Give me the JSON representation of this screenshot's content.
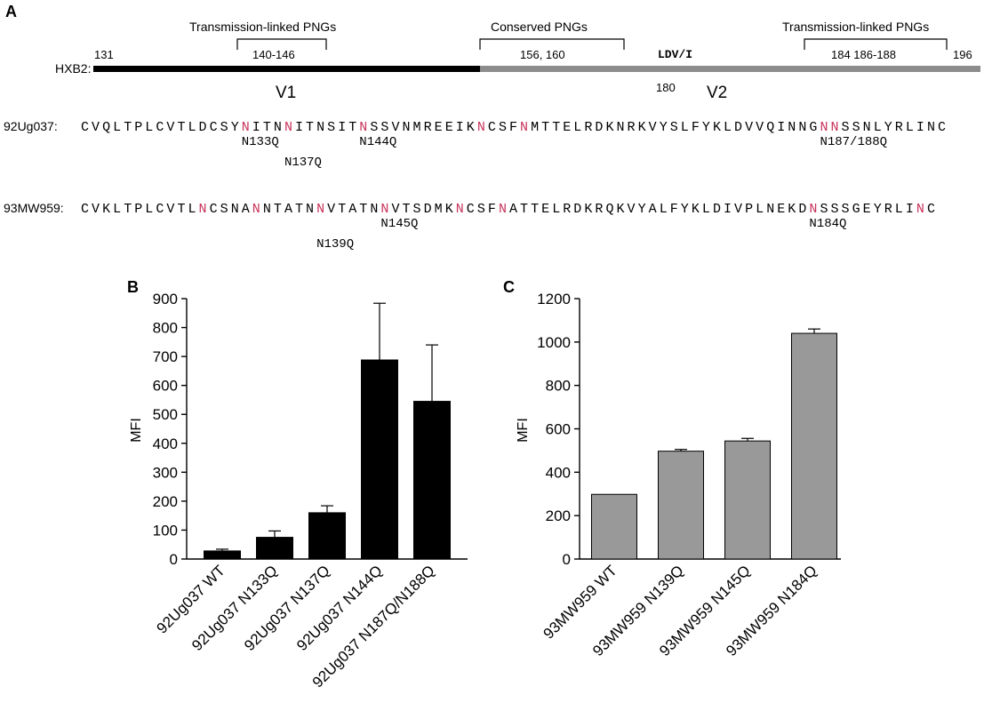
{
  "panel_a": {
    "letter": "A",
    "map_label": "HXB2:",
    "positions": {
      "start": "131",
      "end": "196",
      "mid": "180"
    },
    "regions": {
      "v1": "V1",
      "v2": "V2"
    },
    "ldv_label": "LDV/I",
    "brackets": [
      {
        "title": "Transmission-linked PNGs",
        "range": "140-146"
      },
      {
        "title": "Conserved PNGs",
        "range": "156, 160"
      },
      {
        "title": "Transmission-linked PNGs",
        "range": "184 186-188"
      }
    ],
    "colors": {
      "v1_bar": "#000000",
      "v2_bar": "#8c8c8c",
      "glycan_n": "#c8325a"
    },
    "sequences": [
      {
        "label": "92Ug037:",
        "sequence": "CVQLTPLCVTLDCSYNITNNITNSITNSSVNMREEIKNCSFNMTTELRDKNRKVYSLFYKLDVVQINNGNNSSNLYRLINC",
        "highlight_indices": [
          15,
          19,
          26,
          37,
          41,
          69,
          70
        ],
        "mutations": [
          {
            "label": "N133Q",
            "col": 15,
            "row": 0
          },
          {
            "label": "N137Q",
            "col": 19,
            "row": 1
          },
          {
            "label": "N144Q",
            "col": 26,
            "row": 0
          },
          {
            "label": "N187/188Q",
            "col": 69,
            "row": 0
          }
        ]
      },
      {
        "label": "93MW959:",
        "sequence": "CVKLTPLCVTLNCSNANNTATNNVTATNNVTSDMKNCSFNATTELRDKRQKVYALFYKLDIVPLNEKDNSSSGEYRLINC",
        "highlight_indices": [
          11,
          16,
          22,
          28,
          35,
          39,
          68,
          78
        ],
        "mutations": [
          {
            "label": "N145Q",
            "col": 28,
            "row": 0
          },
          {
            "label": "N139Q",
            "col": 22,
            "row": 1
          },
          {
            "label": "N184Q",
            "col": 68,
            "row": 0
          }
        ]
      }
    ]
  },
  "chart_data": [
    {
      "panel": "B",
      "type": "bar",
      "ylabel": "MFI",
      "ylim": [
        0,
        900
      ],
      "yticks": [
        "0",
        "100",
        "200",
        "300",
        "400",
        "500",
        "600",
        "700",
        "800",
        "900"
      ],
      "bar_color": "#000000",
      "categories": [
        "92Ug037 WT",
        "92Ug037 N133Q",
        "92Ug037 N137Q",
        "92Ug037 N144Q",
        "92Ug037 N187Q/N188Q"
      ],
      "values": [
        28,
        75,
        160,
        688,
        545
      ],
      "errors": [
        6,
        22,
        24,
        196,
        195
      ]
    },
    {
      "panel": "C",
      "type": "bar",
      "ylabel": "MFI",
      "ylim": [
        0,
        1200
      ],
      "yticks": [
        "0",
        "200",
        "400",
        "600",
        "800",
        "1000",
        "1200"
      ],
      "bar_color": "#999999",
      "categories": [
        "93MW959 WT",
        "93MW959 N139Q",
        "93MW959 N145Q",
        "93MW959 N184Q"
      ],
      "values": [
        298,
        497,
        544,
        1040
      ],
      "errors": [
        0,
        8,
        12,
        20
      ]
    }
  ]
}
